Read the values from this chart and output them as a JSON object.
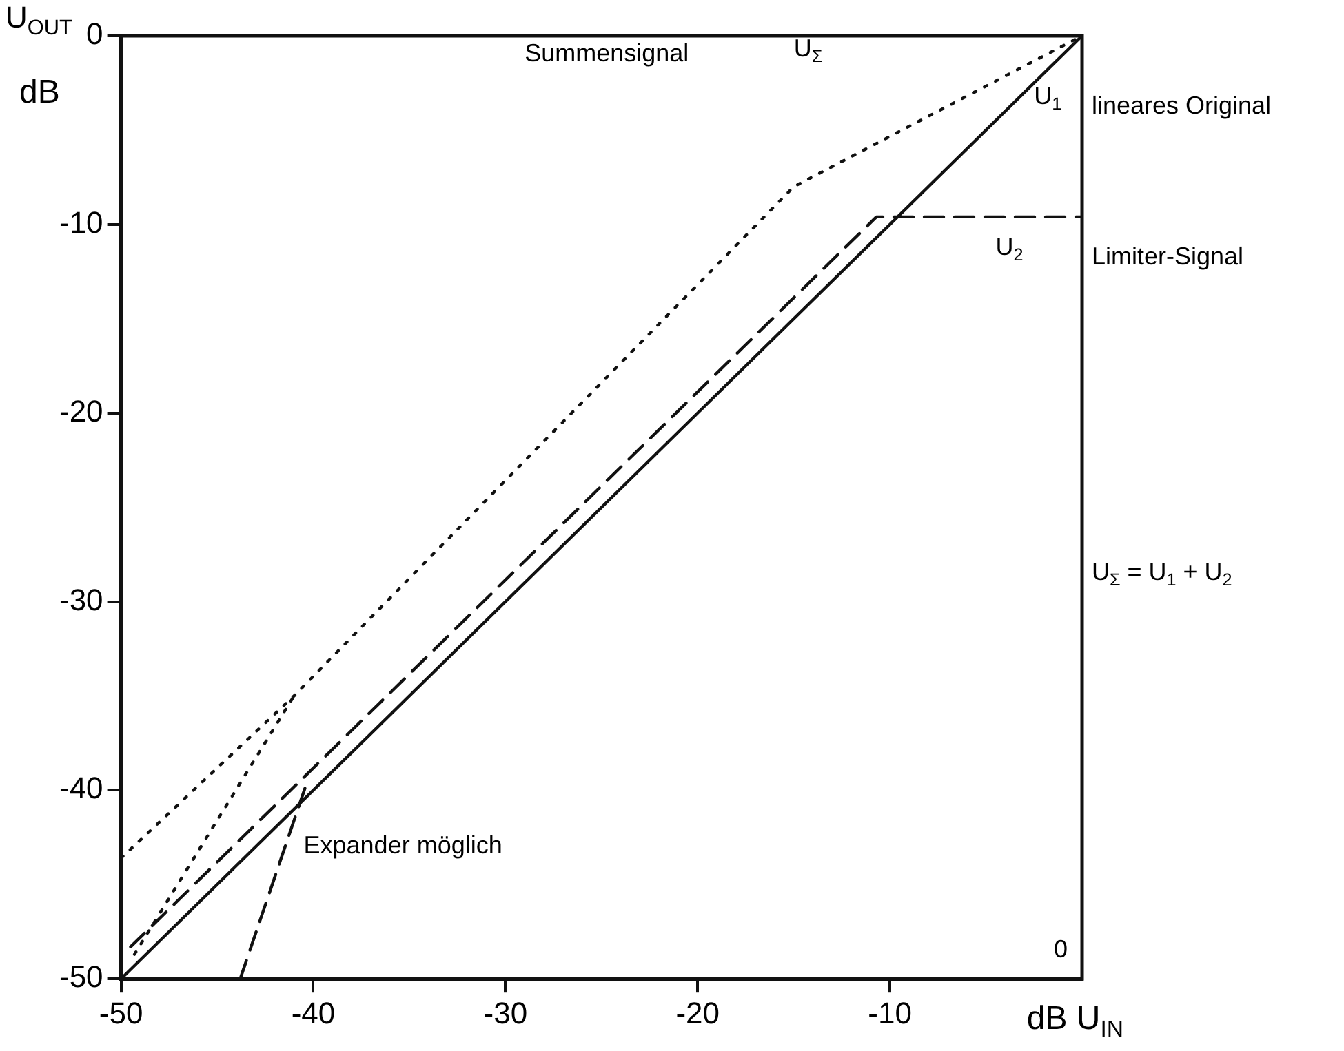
{
  "chart_data": {
    "type": "line",
    "xlabel": "dB U$_{IN}$",
    "ylabel": "U$_{OUT}$ dB",
    "xlim": [
      -50,
      0
    ],
    "ylim": [
      -50,
      0
    ],
    "xticks": [
      -50,
      -40,
      -30,
      -20,
      -10
    ],
    "yticks": [
      -50,
      -40,
      -30,
      -20,
      -10,
      0
    ],
    "grid": false,
    "legend": false,
    "marker": "none",
    "series": [
      {
        "color": "#111111",
        "line_style": "solid",
        "x": [
          -50,
          0
        ],
        "values": [
          -50,
          0
        ]
      },
      {
        "color": "#111111",
        "line_style": "dashed",
        "x": [
          -49.5,
          -10.7,
          0
        ],
        "values": [
          -48.3,
          -9.6,
          -9.6
        ]
      },
      {
        "color": "#111111",
        "line_style": "dotted",
        "x": [
          -50,
          -41,
          -15,
          0
        ],
        "values": [
          -43.6,
          -35,
          -8,
          0
        ]
      },
      {
        "color": "#111111",
        "line_style": "dotted",
        "x": [
          -49.3,
          -41
        ],
        "values": [
          -48.7,
          -35
        ]
      },
      {
        "color": "#111111",
        "line_style": "dashed",
        "x": [
          -43.8,
          -40.3
        ],
        "values": [
          -50,
          -39.5
        ]
      }
    ],
    "annotations": [
      "Summensignal",
      "U$_{Σ}$",
      "U$_{1}$",
      "U$_{2}$",
      "lineares Original",
      "Limiter-Signal",
      "U$_{Σ}$ = U$_{1}$ + U$_{2}$",
      "Expander möglich",
      "0"
    ]
  }
}
